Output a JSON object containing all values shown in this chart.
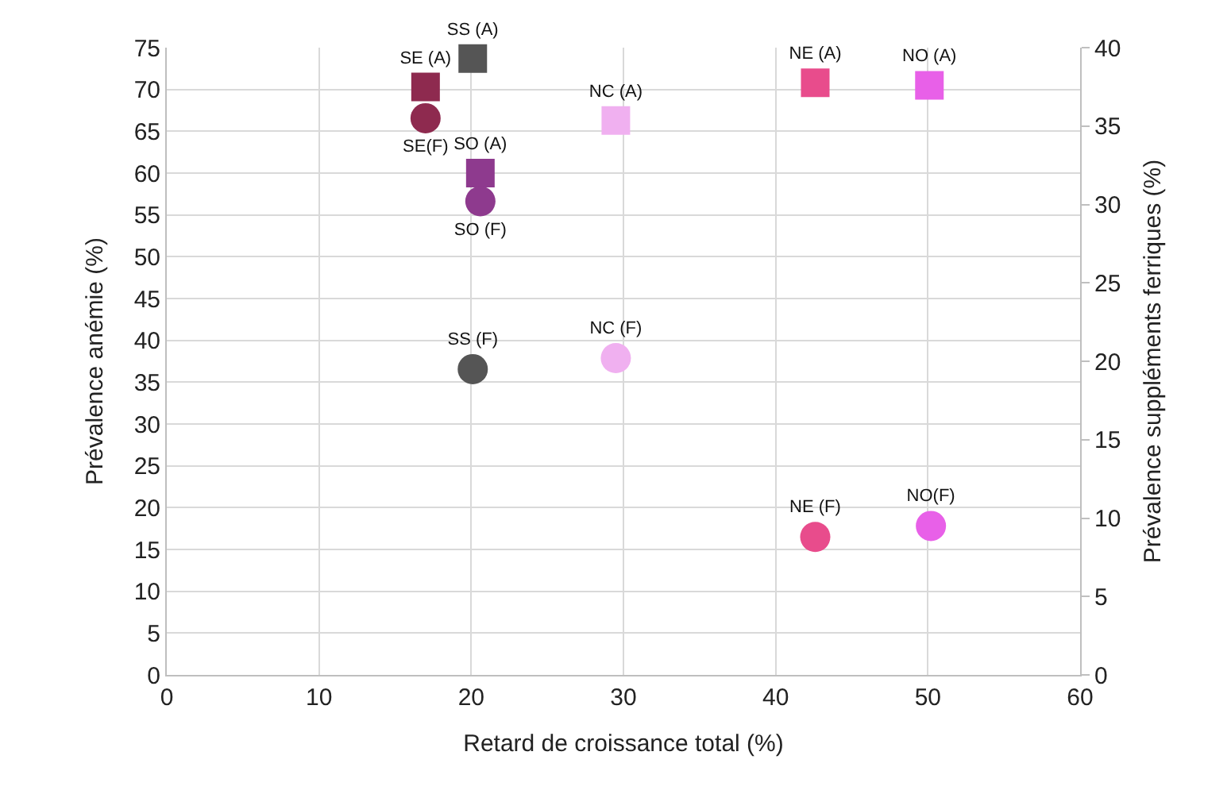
{
  "chart_data": {
    "type": "scatter",
    "xlabel": "Retard de croissance total (%)",
    "ylabel": "Prévalence anémie (%)",
    "y2label": "Prévalence suppléments ferriques (%)",
    "xlim": [
      0,
      60
    ],
    "xticks": [
      0,
      10,
      20,
      30,
      40,
      50,
      60
    ],
    "ylim": [
      0,
      75
    ],
    "yticks": [
      0,
      5,
      10,
      15,
      20,
      25,
      30,
      35,
      40,
      45,
      50,
      55,
      60,
      65,
      70,
      75
    ],
    "y2lim": [
      0,
      40
    ],
    "y2ticks": [
      0,
      5,
      10,
      15,
      20,
      25,
      30,
      35,
      40
    ],
    "grid": true,
    "series": [
      {
        "marker": "square",
        "x": [
          17.0,
          20.1,
          20.6,
          29.5,
          42.6,
          50.1
        ],
        "values": [
          70.3,
          73.7,
          60.0,
          66.3,
          70.8,
          70.5
        ],
        "colors": [
          "#8e2a4f",
          "#555555",
          "#8e3a8e",
          "#f0b0f0",
          "#e84c8c",
          "#e860e8"
        ],
        "value_labels": [
          "SE (A)",
          "SS (A)",
          "SO (A)",
          "NC (A)",
          "NE (A)",
          "NO (A)"
        ]
      },
      {
        "marker": "circle",
        "axis": "y2",
        "x": [
          17.0,
          20.1,
          20.6,
          29.5,
          42.6,
          50.2
        ],
        "values": [
          35.5,
          19.5,
          30.2,
          20.2,
          8.8,
          9.5
        ],
        "colors": [
          "#8e2a4f",
          "#555555",
          "#8e3a8e",
          "#f0b0f0",
          "#e84c8c",
          "#e860e8"
        ],
        "value_labels": [
          "SE(F)",
          "SS (F)",
          "SO (F)",
          "NC (F)",
          "NE (F)",
          "NO(F)"
        ]
      }
    ]
  }
}
